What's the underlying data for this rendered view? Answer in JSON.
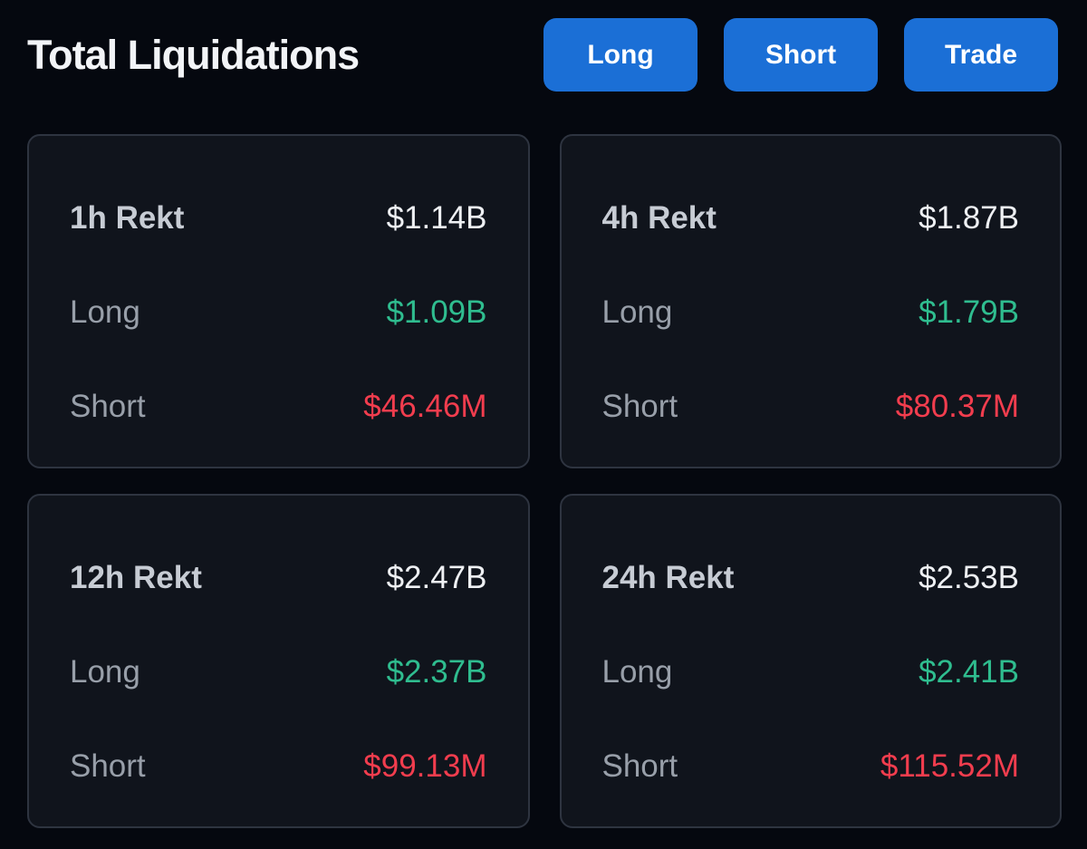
{
  "header": {
    "title": "Total Liquidations",
    "buttons": {
      "long_label": "Long",
      "short_label": "Short",
      "trade_label": "Trade"
    }
  },
  "cards": [
    {
      "title": "1h Rekt",
      "total": "$1.14B",
      "long_label": "Long",
      "long_value": "$1.09B",
      "short_label": "Short",
      "short_value": "$46.46M"
    },
    {
      "title": "4h Rekt",
      "total": "$1.87B",
      "long_label": "Long",
      "long_value": "$1.79B",
      "short_label": "Short",
      "short_value": "$80.37M"
    },
    {
      "title": "12h Rekt",
      "total": "$2.47B",
      "long_label": "Long",
      "long_value": "$2.37B",
      "short_label": "Short",
      "short_value": "$99.13M"
    },
    {
      "title": "24h Rekt",
      "total": "$2.53B",
      "long_label": "Long",
      "long_value": "$2.41B",
      "short_label": "Short",
      "short_value": "$115.52M"
    }
  ],
  "colors": {
    "page_background": "#05080f",
    "card_background": "#10141c",
    "card_border": "#2e3440",
    "accent_blue": "#1b6fd6",
    "positive_green": "#2fbd8f",
    "negative_red": "#f23d4e",
    "title_white": "#f2f4f7",
    "label_gray": "#989fa9"
  }
}
